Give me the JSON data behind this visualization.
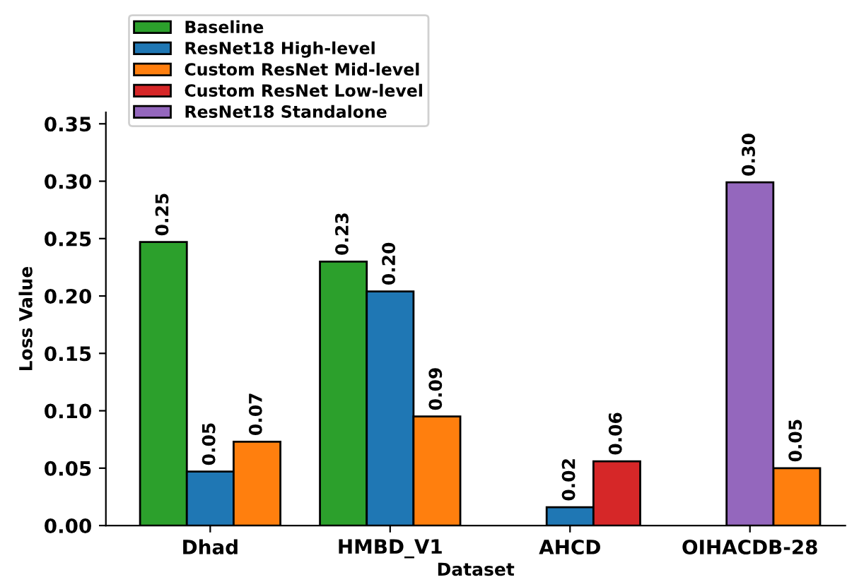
{
  "chart_data": {
    "type": "bar",
    "xlabel": "Dataset",
    "ylabel": "Loss Value",
    "categories": [
      "Dhad",
      "HMBD_V1",
      "AHCD",
      "OIHACDB-28"
    ],
    "series": [
      {
        "name": "Baseline",
        "color": "#2ca02c",
        "values": [
          0.247,
          0.23,
          null,
          null
        ],
        "value_labels": [
          "0.25",
          "0.23",
          null,
          null
        ]
      },
      {
        "name": "ResNet18 High-level",
        "color": "#1f77b4",
        "values": [
          0.047,
          0.204,
          0.016,
          null
        ],
        "value_labels": [
          "0.05",
          "0.20",
          "0.02",
          null
        ]
      },
      {
        "name": "Custom ResNet Mid-level",
        "color": "#ff7f0e",
        "values": [
          0.073,
          0.095,
          null,
          0.05
        ],
        "value_labels": [
          "0.07",
          "0.09",
          null,
          "0.05"
        ]
      },
      {
        "name": "Custom ResNet Low-level",
        "color": "#d62728",
        "values": [
          null,
          null,
          0.056,
          null
        ],
        "value_labels": [
          null,
          null,
          "0.06",
          null
        ]
      },
      {
        "name": "ResNet18 Standalone",
        "color": "#9467bd",
        "values": [
          null,
          null,
          null,
          0.299
        ],
        "value_labels": [
          null,
          null,
          null,
          "0.30"
        ]
      }
    ],
    "ylim": [
      0,
      0.36
    ],
    "yticks": [
      {
        "value": 0,
        "label": "0.00"
      },
      {
        "value": 0.05,
        "label": "0.05"
      },
      {
        "value": 0.1,
        "label": "0.10"
      },
      {
        "value": 0.15,
        "label": "0.15"
      },
      {
        "value": 0.2,
        "label": "0.20"
      },
      {
        "value": 0.25,
        "label": "0.25"
      },
      {
        "value": 0.3,
        "label": "0.30"
      },
      {
        "value": 0.35,
        "label": "0.35"
      }
    ],
    "grid": false,
    "legend": "top left"
  }
}
